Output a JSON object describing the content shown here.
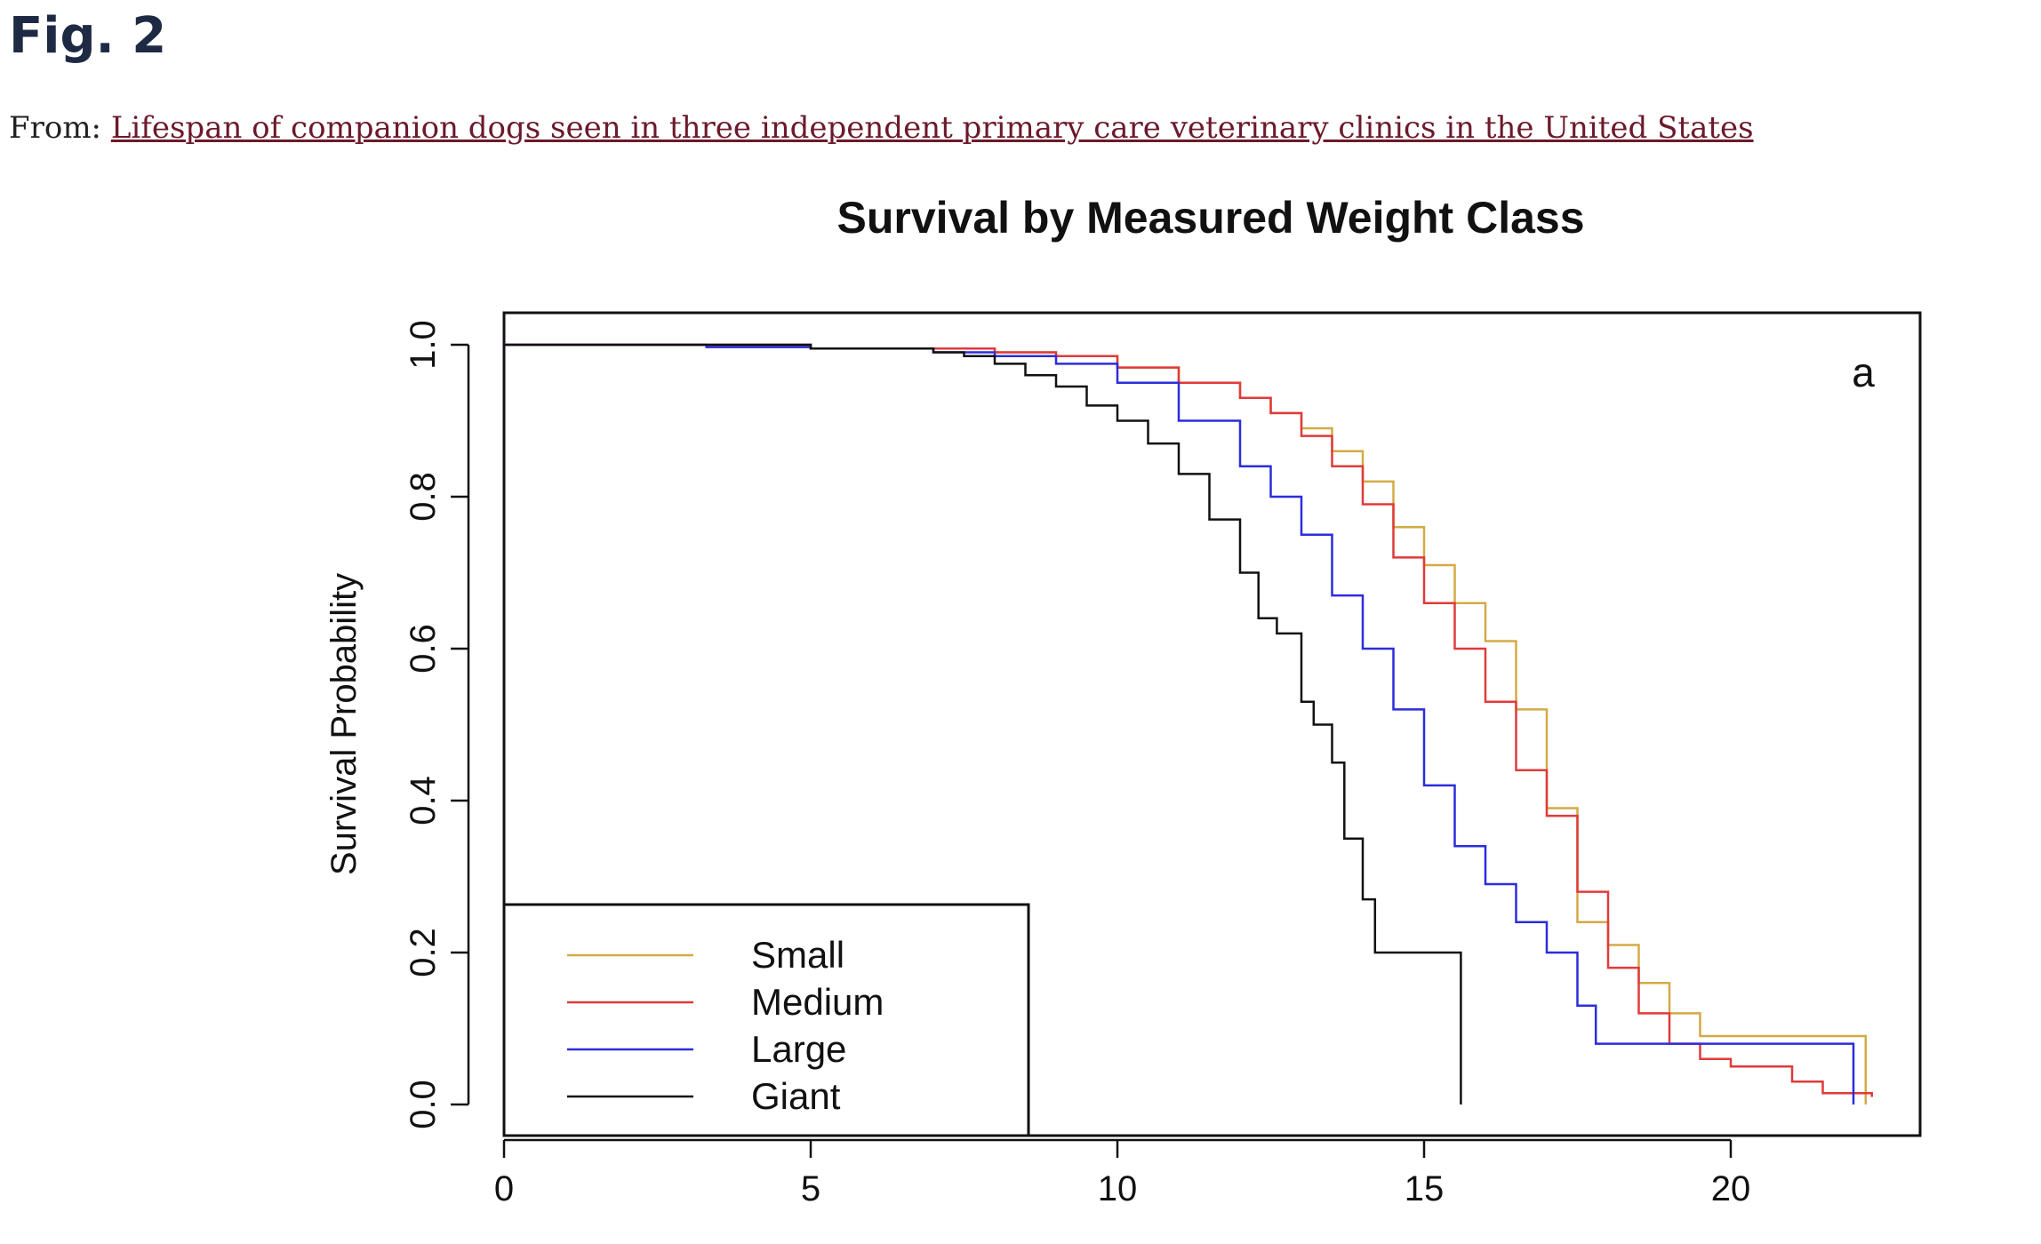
{
  "header": {
    "figure_label": "Fig. 2",
    "from_prefix": "From:",
    "source_link_text": "Lifespan of companion dogs seen in three independent primary care veterinary clinics in the United States"
  },
  "chart_data": {
    "type": "line",
    "title": "Survival by Measured Weight Class",
    "panel_label": "a",
    "xlabel": "",
    "ylabel": "Survival Probability",
    "xlim": [
      0,
      23
    ],
    "ylim": [
      0,
      1.0
    ],
    "x_ticks": [
      "0",
      "5",
      "10",
      "15",
      "20"
    ],
    "y_ticks": [
      "0.0",
      "0.2",
      "0.4",
      "0.6",
      "0.8",
      "1.0"
    ],
    "grid": false,
    "legend_position": "bottom-left",
    "series": [
      {
        "name": "Small",
        "color": "#d4aa45",
        "x": [
          0,
          3.3,
          5,
          7,
          8,
          9,
          10,
          11,
          12,
          12.5,
          13,
          13.5,
          14,
          14.5,
          15,
          15.5,
          16,
          16.5,
          17,
          17.5,
          18,
          18.5,
          19,
          19.5,
          20,
          21,
          22,
          22.2
        ],
        "y": [
          1.0,
          1.0,
          0.995,
          0.995,
          0.99,
          0.985,
          0.97,
          0.95,
          0.93,
          0.91,
          0.89,
          0.86,
          0.82,
          0.76,
          0.71,
          0.66,
          0.61,
          0.52,
          0.39,
          0.24,
          0.21,
          0.16,
          0.12,
          0.09,
          0.09,
          0.09,
          0.09,
          0.0
        ]
      },
      {
        "name": "Medium",
        "color": "#e03a3a",
        "x": [
          0,
          3.3,
          5,
          7,
          8,
          9,
          10,
          11,
          12,
          12.5,
          13,
          13.5,
          14,
          14.5,
          15,
          15.5,
          16,
          16.5,
          17,
          17.5,
          18,
          18.5,
          19,
          19.5,
          20,
          21,
          21.5,
          22.3
        ],
        "y": [
          1.0,
          1.0,
          0.995,
          0.995,
          0.99,
          0.985,
          0.97,
          0.95,
          0.93,
          0.91,
          0.88,
          0.84,
          0.79,
          0.72,
          0.66,
          0.6,
          0.53,
          0.44,
          0.38,
          0.28,
          0.18,
          0.12,
          0.08,
          0.06,
          0.05,
          0.03,
          0.015,
          0.01
        ]
      },
      {
        "name": "Large",
        "color": "#2c2cdd",
        "x": [
          0,
          3.3,
          5,
          7,
          8,
          9,
          10,
          11,
          12,
          12.5,
          13,
          13.5,
          14,
          14.5,
          15,
          15.5,
          16,
          16.5,
          17,
          17.5,
          17.8,
          18.5,
          20,
          21,
          22,
          22.0
        ],
        "y": [
          1.0,
          0.997,
          0.995,
          0.99,
          0.985,
          0.975,
          0.95,
          0.9,
          0.84,
          0.8,
          0.75,
          0.67,
          0.6,
          0.52,
          0.42,
          0.34,
          0.29,
          0.24,
          0.2,
          0.13,
          0.08,
          0.08,
          0.08,
          0.08,
          0.08,
          0.0
        ]
      },
      {
        "name": "Giant",
        "color": "#111111",
        "x": [
          0,
          5,
          7,
          7.5,
          8,
          8.5,
          9,
          9.5,
          10,
          10.5,
          11,
          11.5,
          12,
          12.3,
          12.6,
          13,
          13.2,
          13.5,
          13.7,
          14,
          14.2,
          14.5,
          15,
          15.6,
          15.6
        ],
        "y": [
          1.0,
          0.995,
          0.99,
          0.985,
          0.975,
          0.96,
          0.945,
          0.92,
          0.9,
          0.87,
          0.83,
          0.77,
          0.7,
          0.64,
          0.62,
          0.53,
          0.5,
          0.45,
          0.35,
          0.27,
          0.2,
          0.2,
          0.2,
          0.2,
          0.0
        ]
      }
    ]
  }
}
